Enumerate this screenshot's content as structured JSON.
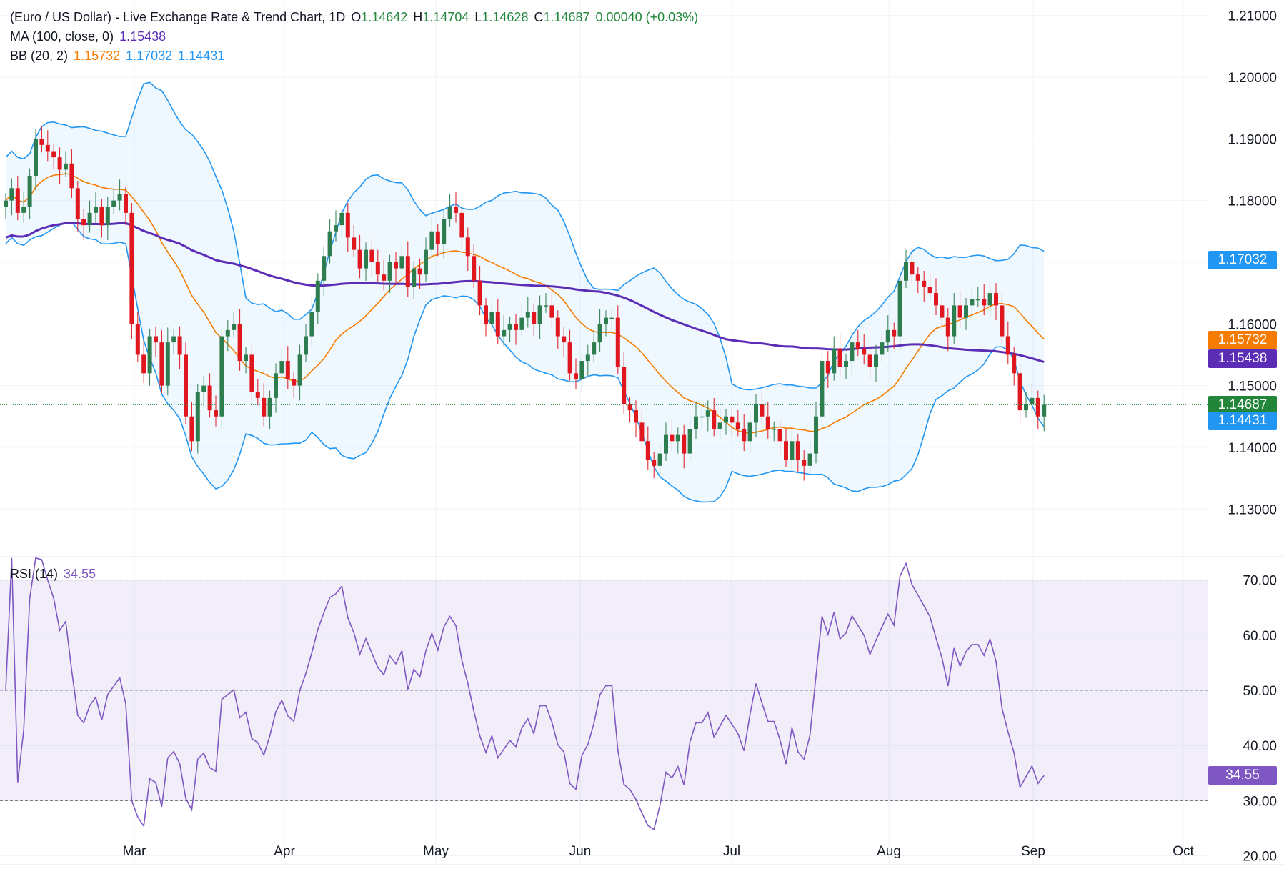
{
  "chart_data": [
    {
      "type": "candlestick",
      "title": "(Euro / US Dollar) - Live Exchange Rate & Trend Chart, 1D",
      "ohlc_label": {
        "open_prefix": "O",
        "open": "1.14642",
        "high_prefix": "H",
        "high": "1.14704",
        "low_prefix": "L",
        "low": "1.14628",
        "close_prefix": "C",
        "close": "1.14687",
        "change": "0.00040 (+0.03%)"
      },
      "indicators": {
        "ma": {
          "label": "MA (100, close, 0)",
          "value": "1.15438",
          "color": "#5b2db5"
        },
        "bb": {
          "label": "BB (20, 2)",
          "basis": "1.15732",
          "upper": "1.17032",
          "lower": "1.14431",
          "basis_color": "#f57c00",
          "band_color": "#2196f3"
        }
      },
      "y_ticks": [
        "1.21000",
        "1.20000",
        "1.19000",
        "1.18000",
        "1.17000",
        "1.16000",
        "1.15000",
        "1.14000",
        "1.13000"
      ],
      "ylim": [
        1.1225,
        1.2125
      ],
      "x_ticks": [
        "Mar",
        "Apr",
        "May",
        "Jun",
        "Jul",
        "Aug",
        "Sep",
        "Oct"
      ],
      "price_tags": [
        {
          "label": "1.17032",
          "value": 1.17032,
          "color": "#2196f3"
        },
        {
          "label": "1.15732",
          "value": 1.15732,
          "color": "#f57c00"
        },
        {
          "label": "1.15438",
          "value": 1.15438,
          "color": "#5b2db5"
        },
        {
          "label": "1.14687",
          "value": 1.14687,
          "color": "#22863a"
        },
        {
          "label": "1.14431",
          "value": 1.14431,
          "color": "#2196f3"
        }
      ],
      "close_series": [
        1.18,
        1.182,
        1.178,
        1.179,
        1.184,
        1.19,
        1.189,
        1.188,
        1.187,
        1.185,
        1.186,
        1.182,
        1.177,
        1.176,
        1.178,
        1.179,
        1.176,
        1.179,
        1.18,
        1.181,
        1.178,
        1.16,
        1.155,
        1.152,
        1.158,
        1.157,
        1.15,
        1.157,
        1.158,
        1.155,
        1.145,
        1.141,
        1.149,
        1.15,
        1.146,
        1.145,
        1.158,
        1.159,
        1.16,
        1.154,
        1.155,
        1.149,
        1.148,
        1.145,
        1.148,
        1.152,
        1.154,
        1.151,
        1.15,
        1.155,
        1.158,
        1.162,
        1.167,
        1.171,
        1.175,
        1.176,
        1.178,
        1.174,
        1.172,
        1.169,
        1.172,
        1.17,
        1.168,
        1.167,
        1.17,
        1.169,
        1.171,
        1.166,
        1.169,
        1.168,
        1.172,
        1.175,
        1.173,
        1.177,
        1.179,
        1.178,
        1.174,
        1.171,
        1.167,
        1.163,
        1.16,
        1.162,
        1.158,
        1.159,
        1.16,
        1.159,
        1.161,
        1.162,
        1.16,
        1.163,
        1.163,
        1.161,
        1.158,
        1.157,
        1.152,
        1.151,
        1.154,
        1.155,
        1.157,
        1.16,
        1.161,
        1.161,
        1.153,
        1.147,
        1.146,
        1.144,
        1.141,
        1.138,
        1.137,
        1.139,
        1.142,
        1.141,
        1.142,
        1.139,
        1.143,
        1.145,
        1.145,
        1.146,
        1.143,
        1.144,
        1.145,
        1.144,
        1.143,
        1.141,
        1.144,
        1.147,
        1.145,
        1.143,
        1.143,
        1.141,
        1.138,
        1.141,
        1.138,
        1.137,
        1.139,
        1.145,
        1.154,
        1.152,
        1.156,
        1.153,
        1.154,
        1.157,
        1.156,
        1.155,
        1.153,
        1.155,
        1.157,
        1.159,
        1.158,
        1.167,
        1.17,
        1.168,
        1.167,
        1.166,
        1.165,
        1.163,
        1.161,
        1.158,
        1.163,
        1.161,
        1.163,
        1.164,
        1.164,
        1.163,
        1.165,
        1.163,
        1.158,
        1.155,
        1.152,
        1.146,
        1.147,
        1.148,
        1.145,
        1.1469
      ]
    },
    {
      "type": "line",
      "title": "RSI (14)",
      "value": "34.55",
      "color": "#7e57c2",
      "y_ticks": [
        "70.00",
        "60.00",
        "50.00",
        "40.00",
        "30.00",
        "20.00"
      ],
      "ylim": [
        18.4,
        74.1
      ],
      "band": [
        30,
        70
      ],
      "value_tag": {
        "label": "34.55",
        "value": 34.55
      }
    }
  ]
}
